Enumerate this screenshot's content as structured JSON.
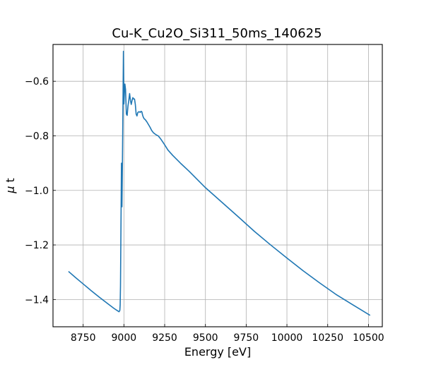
{
  "chart_data": {
    "type": "line",
    "title": "Cu-K_Cu2O_Si311_50ms_140625",
    "xlabel": "Energy [eV]",
    "ylabel_symbol": "μ",
    "ylabel_suffix": "t",
    "xlim": [
      8565,
      10585
    ],
    "ylim": [
      -1.5,
      -0.465
    ],
    "xticks": [
      8750,
      9000,
      9250,
      9500,
      9750,
      10000,
      10250,
      10500
    ],
    "yticks": [
      -1.4,
      -1.2,
      -1.0,
      -0.8,
      -0.6
    ],
    "grid": true,
    "line_color": "#1f77b4",
    "series": [
      {
        "x": [
          8660,
          8700,
          8750,
          8800,
          8850,
          8900,
          8940,
          8960,
          8970,
          8975,
          8977,
          8979,
          8981,
          8983,
          8985,
          8988,
          8991,
          8994,
          8997,
          9000,
          9003,
          9006,
          9010,
          9015,
          9020,
          9025,
          9030,
          9035,
          9040,
          9045,
          9050,
          9055,
          9060,
          9065,
          9070,
          9075,
          9080,
          9085,
          9090,
          9095,
          9100,
          9105,
          9110,
          9115,
          9120,
          9125,
          9130,
          9140,
          9150,
          9160,
          9170,
          9180,
          9190,
          9200,
          9210,
          9220,
          9230,
          9250,
          9270,
          9300,
          9350,
          9400,
          9450,
          9500,
          9600,
          9700,
          9800,
          9900,
          10000,
          10100,
          10200,
          10300,
          10400,
          10510
        ],
        "y": [
          -1.297,
          -1.318,
          -1.343,
          -1.368,
          -1.392,
          -1.415,
          -1.433,
          -1.441,
          -1.445,
          -1.44,
          -1.42,
          -1.35,
          -1.2,
          -1.05,
          -0.9,
          -1.06,
          -0.89,
          -0.7,
          -0.49,
          -0.683,
          -0.645,
          -0.61,
          -0.63,
          -0.72,
          -0.725,
          -0.69,
          -0.67,
          -0.645,
          -0.67,
          -0.685,
          -0.67,
          -0.66,
          -0.665,
          -0.665,
          -0.685,
          -0.72,
          -0.727,
          -0.715,
          -0.712,
          -0.712,
          -0.714,
          -0.71,
          -0.712,
          -0.725,
          -0.733,
          -0.738,
          -0.74,
          -0.748,
          -0.758,
          -0.768,
          -0.78,
          -0.788,
          -0.793,
          -0.797,
          -0.8,
          -0.807,
          -0.815,
          -0.833,
          -0.852,
          -0.872,
          -0.902,
          -0.93,
          -0.96,
          -0.99,
          -1.043,
          -1.096,
          -1.15,
          -1.2,
          -1.248,
          -1.295,
          -1.339,
          -1.381,
          -1.418,
          -1.458
        ]
      }
    ]
  }
}
